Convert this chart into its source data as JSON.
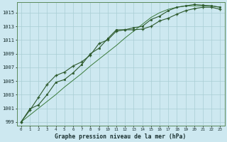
{
  "title": "Graphe pression niveau de la mer (hPa)",
  "background_color": "#cde8f0",
  "grid_color": "#a8cdd4",
  "line_color_plus": "#2d5a2d",
  "line_color_diag": "#3a7a3a",
  "line_color_sq": "#2d5a2d",
  "xlim": [
    -0.5,
    23.5
  ],
  "ylim": [
    998.5,
    1016.5
  ],
  "yticks": [
    999,
    1001,
    1003,
    1005,
    1007,
    1009,
    1011,
    1013,
    1015
  ],
  "xticks": [
    0,
    1,
    2,
    3,
    4,
    5,
    6,
    7,
    8,
    9,
    10,
    11,
    12,
    13,
    14,
    15,
    16,
    17,
    18,
    19,
    20,
    21,
    22,
    23
  ],
  "series_plus": [
    999.0,
    1000.7,
    1002.6,
    1004.5,
    1005.8,
    1006.3,
    1007.2,
    1007.8,
    1008.8,
    1010.5,
    1011.0,
    1012.3,
    1012.5,
    1012.5,
    1012.6,
    1013.0,
    1013.8,
    1014.2,
    1014.8,
    1015.3,
    1015.6,
    1015.8,
    1015.8,
    1015.5
  ],
  "series_diag": [
    999.0,
    1000.0,
    1001.0,
    1002.0,
    1003.0,
    1004.1,
    1005.1,
    1006.1,
    1007.2,
    1008.2,
    1009.2,
    1010.2,
    1011.3,
    1012.3,
    1013.3,
    1014.3,
    1015.0,
    1015.5,
    1015.8,
    1016.0,
    1016.0,
    1016.0,
    1016.0,
    1015.8
  ],
  "series_sq": [
    999.0,
    1000.9,
    1001.5,
    1003.0,
    1004.8,
    1005.2,
    1006.2,
    1007.4,
    1009.0,
    1009.8,
    1011.2,
    1012.5,
    1012.5,
    1012.8,
    1013.0,
    1014.0,
    1014.5,
    1015.3,
    1015.8,
    1016.0,
    1016.2,
    1016.1,
    1016.0,
    1015.8
  ]
}
